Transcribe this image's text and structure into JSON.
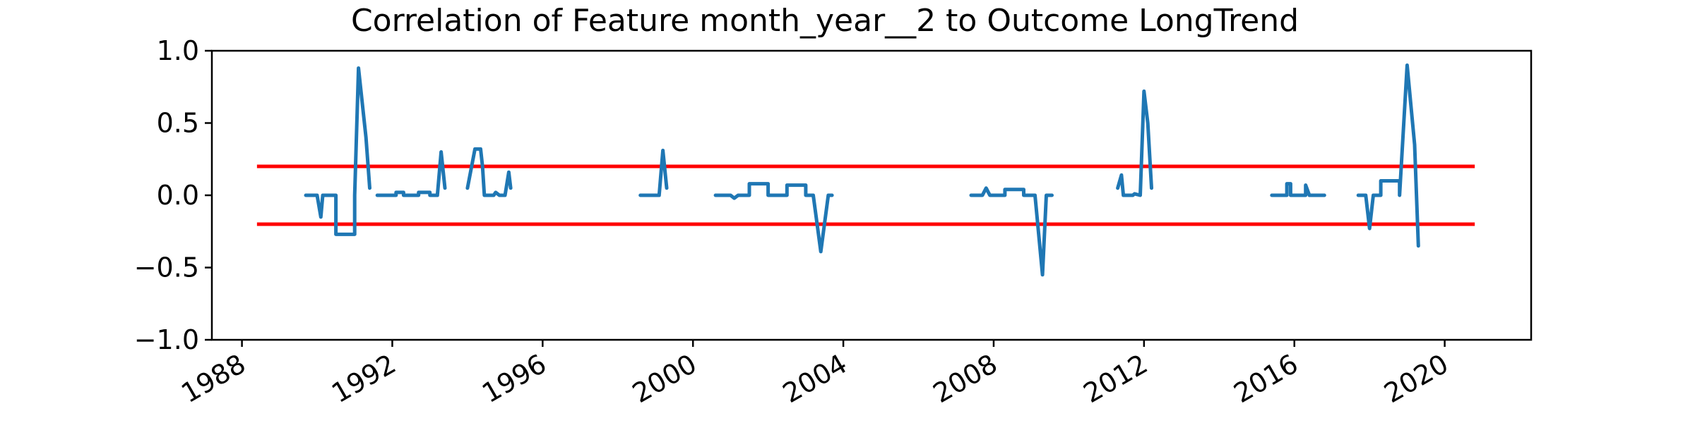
{
  "chart_data": {
    "type": "line",
    "title": "Correlation of Feature month_year__2 to Outcome LongTrend",
    "xlabel": "",
    "ylabel": "",
    "xlim": [
      1987.2,
      2022.3
    ],
    "ylim": [
      -1.0,
      1.0
    ],
    "grid": false,
    "x_ticks": [
      1988,
      1992,
      1996,
      2000,
      2004,
      2008,
      2012,
      2016,
      2020
    ],
    "x_tick_labels": [
      "1988",
      "1992",
      "1996",
      "2000",
      "2004",
      "2008",
      "2012",
      "2016",
      "2020"
    ],
    "y_ticks": [
      -1.0,
      -0.5,
      0.0,
      0.5,
      1.0
    ],
    "y_tick_labels": [
      "−1.0",
      "−0.5",
      "0.0",
      "0.5",
      "1.0"
    ],
    "thresholds": [
      {
        "y": 0.2,
        "x_start": 1988.4,
        "x_end": 2020.8,
        "color": "#ff0000"
      },
      {
        "y": -0.2,
        "x_start": 1988.4,
        "x_end": 2020.8,
        "color": "#ff0000"
      }
    ],
    "series": [
      {
        "color": "#1f77b4",
        "segments": [
          [
            [
              1989.7,
              0.0
            ],
            [
              1990.0,
              0.0
            ],
            [
              1990.1,
              -0.15
            ],
            [
              1990.15,
              0.0
            ],
            [
              1990.5,
              0.0
            ],
            [
              1990.5,
              -0.27
            ],
            [
              1991.0,
              -0.27
            ],
            [
              1991.0,
              0.0
            ],
            [
              1991.1,
              0.88
            ],
            [
              1991.3,
              0.4
            ],
            [
              1991.4,
              0.05
            ]
          ],
          [
            [
              1991.6,
              0.0
            ],
            [
              1992.1,
              0.0
            ],
            [
              1992.1,
              0.02
            ],
            [
              1992.3,
              0.02
            ],
            [
              1992.3,
              0.0
            ],
            [
              1992.7,
              0.0
            ],
            [
              1992.7,
              0.02
            ],
            [
              1993.0,
              0.02
            ],
            [
              1993.0,
              0.0
            ],
            [
              1993.2,
              0.0
            ],
            [
              1993.3,
              0.3
            ],
            [
              1993.4,
              0.05
            ]
          ],
          [
            [
              1994.0,
              0.05
            ],
            [
              1994.2,
              0.32
            ],
            [
              1994.35,
              0.32
            ],
            [
              1994.4,
              0.2
            ],
            [
              1994.45,
              0.0
            ],
            [
              1994.7,
              0.0
            ],
            [
              1994.75,
              0.02
            ],
            [
              1994.85,
              0.0
            ],
            [
              1995.0,
              0.0
            ],
            [
              1995.1,
              0.16
            ],
            [
              1995.15,
              0.05
            ]
          ],
          [
            [
              1998.6,
              0.0
            ],
            [
              1999.1,
              0.0
            ],
            [
              1999.2,
              0.31
            ],
            [
              1999.3,
              0.05
            ]
          ],
          [
            [
              2000.6,
              0.0
            ],
            [
              2001.0,
              0.0
            ],
            [
              2001.1,
              -0.02
            ],
            [
              2001.2,
              0.0
            ],
            [
              2001.5,
              0.0
            ],
            [
              2001.5,
              0.08
            ],
            [
              2002.0,
              0.08
            ],
            [
              2002.0,
              0.0
            ],
            [
              2002.5,
              0.0
            ],
            [
              2002.5,
              0.07
            ],
            [
              2003.0,
              0.07
            ],
            [
              2003.0,
              0.0
            ],
            [
              2003.2,
              0.0
            ],
            [
              2003.4,
              -0.39
            ],
            [
              2003.6,
              0.0
            ],
            [
              2003.7,
              0.0
            ]
          ],
          [
            [
              2007.4,
              0.0
            ],
            [
              2007.7,
              0.0
            ],
            [
              2007.8,
              0.05
            ],
            [
              2007.9,
              0.0
            ],
            [
              2008.3,
              0.0
            ],
            [
              2008.3,
              0.04
            ],
            [
              2008.8,
              0.04
            ],
            [
              2008.8,
              0.0
            ],
            [
              2009.1,
              0.0
            ],
            [
              2009.3,
              -0.55
            ],
            [
              2009.4,
              0.0
            ],
            [
              2009.55,
              0.0
            ]
          ],
          [
            [
              2011.3,
              0.05
            ],
            [
              2011.4,
              0.14
            ],
            [
              2011.45,
              0.0
            ],
            [
              2011.7,
              0.0
            ],
            [
              2011.75,
              0.01
            ],
            [
              2011.9,
              0.0
            ],
            [
              2012.0,
              0.72
            ],
            [
              2012.1,
              0.5
            ],
            [
              2012.2,
              0.05
            ]
          ],
          [
            [
              2015.4,
              0.0
            ],
            [
              2015.8,
              0.0
            ],
            [
              2015.8,
              0.08
            ],
            [
              2015.9,
              0.08
            ],
            [
              2015.9,
              0.0
            ],
            [
              2016.3,
              0.0
            ],
            [
              2016.3,
              0.07
            ],
            [
              2016.4,
              0.0
            ],
            [
              2016.8,
              0.0
            ]
          ],
          [
            [
              2017.7,
              0.0
            ],
            [
              2017.9,
              0.0
            ],
            [
              2018.0,
              -0.23
            ],
            [
              2018.1,
              0.0
            ],
            [
              2018.3,
              0.0
            ],
            [
              2018.3,
              0.1
            ],
            [
              2018.8,
              0.1
            ],
            [
              2018.8,
              0.0
            ],
            [
              2019.0,
              0.9
            ],
            [
              2019.2,
              0.35
            ],
            [
              2019.3,
              -0.35
            ]
          ]
        ]
      }
    ]
  }
}
